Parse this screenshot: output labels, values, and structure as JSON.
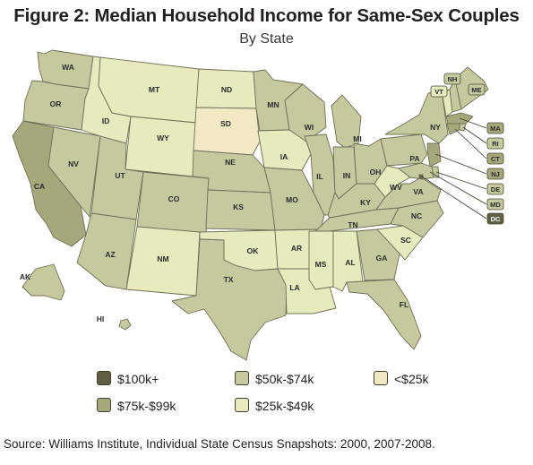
{
  "title": "Figure 2: Median Household Income for Same-Sex Couples",
  "subtitle": "By State",
  "source": "Source: Williams Institute, Individual State Census Snapshots: 2000, 2007-2008.",
  "colors": {
    "100k_plus": "#5f5f45",
    "75k_99k": "#a6a87b",
    "50k_74k": "#c6c99e",
    "25k_49k": "#e7eabc",
    "under_25k": "#f1e9c3",
    "border": "#6f6f55",
    "box_border": "#4a4a38"
  },
  "legend": [
    {
      "label": "$100k+",
      "band": "100k_plus"
    },
    {
      "label": "$50k-$74k",
      "band": "50k_74k"
    },
    {
      "label": "<$25k",
      "band": "under_25k"
    },
    {
      "label": "$75k-$99k",
      "band": "75k_99k"
    },
    {
      "label": "$25k-$49k",
      "band": "25k_49k"
    }
  ],
  "states": [
    {
      "abbr": "WA",
      "band": "50k_74k"
    },
    {
      "abbr": "OR",
      "band": "50k_74k"
    },
    {
      "abbr": "CA",
      "band": "75k_99k"
    },
    {
      "abbr": "NV",
      "band": "50k_74k"
    },
    {
      "abbr": "ID",
      "band": "25k_49k"
    },
    {
      "abbr": "MT",
      "band": "25k_49k"
    },
    {
      "abbr": "WY",
      "band": "25k_49k"
    },
    {
      "abbr": "UT",
      "band": "50k_74k"
    },
    {
      "abbr": "AZ",
      "band": "50k_74k"
    },
    {
      "abbr": "CO",
      "band": "50k_74k"
    },
    {
      "abbr": "NM",
      "band": "25k_49k"
    },
    {
      "abbr": "ND",
      "band": "25k_49k"
    },
    {
      "abbr": "SD",
      "band": "under_25k"
    },
    {
      "abbr": "NE",
      "band": "50k_74k"
    },
    {
      "abbr": "KS",
      "band": "50k_74k"
    },
    {
      "abbr": "OK",
      "band": "25k_49k"
    },
    {
      "abbr": "TX",
      "band": "50k_74k"
    },
    {
      "abbr": "MN",
      "band": "50k_74k"
    },
    {
      "abbr": "IA",
      "band": "25k_49k"
    },
    {
      "abbr": "MO",
      "band": "50k_74k"
    },
    {
      "abbr": "AR",
      "band": "25k_49k"
    },
    {
      "abbr": "LA",
      "band": "25k_49k"
    },
    {
      "abbr": "WI",
      "band": "50k_74k"
    },
    {
      "abbr": "IL",
      "band": "50k_74k"
    },
    {
      "abbr": "MI",
      "band": "50k_74k"
    },
    {
      "abbr": "IN",
      "band": "50k_74k"
    },
    {
      "abbr": "OH",
      "band": "50k_74k"
    },
    {
      "abbr": "KY",
      "band": "50k_74k"
    },
    {
      "abbr": "TN",
      "band": "50k_74k"
    },
    {
      "abbr": "MS",
      "band": "25k_49k"
    },
    {
      "abbr": "AL",
      "band": "25k_49k"
    },
    {
      "abbr": "GA",
      "band": "50k_74k"
    },
    {
      "abbr": "FL",
      "band": "50k_74k"
    },
    {
      "abbr": "SC",
      "band": "25k_49k"
    },
    {
      "abbr": "NC",
      "band": "50k_74k"
    },
    {
      "abbr": "VA",
      "band": "50k_74k"
    },
    {
      "abbr": "WV",
      "band": "25k_49k"
    },
    {
      "abbr": "PA",
      "band": "50k_74k"
    },
    {
      "abbr": "NY",
      "band": "50k_74k"
    },
    {
      "abbr": "VT",
      "band": "25k_49k"
    },
    {
      "abbr": "NH",
      "band": "50k_74k"
    },
    {
      "abbr": "ME",
      "band": "50k_74k"
    },
    {
      "abbr": "MA",
      "band": "75k_99k"
    },
    {
      "abbr": "RI",
      "band": "50k_74k"
    },
    {
      "abbr": "CT",
      "band": "75k_99k"
    },
    {
      "abbr": "NJ",
      "band": "75k_99k"
    },
    {
      "abbr": "DE",
      "band": "50k_74k"
    },
    {
      "abbr": "MD",
      "band": "50k_74k"
    },
    {
      "abbr": "DC",
      "band": "100k_plus"
    },
    {
      "abbr": "AK",
      "band": "50k_74k"
    },
    {
      "abbr": "HI",
      "band": "50k_74k"
    }
  ]
}
